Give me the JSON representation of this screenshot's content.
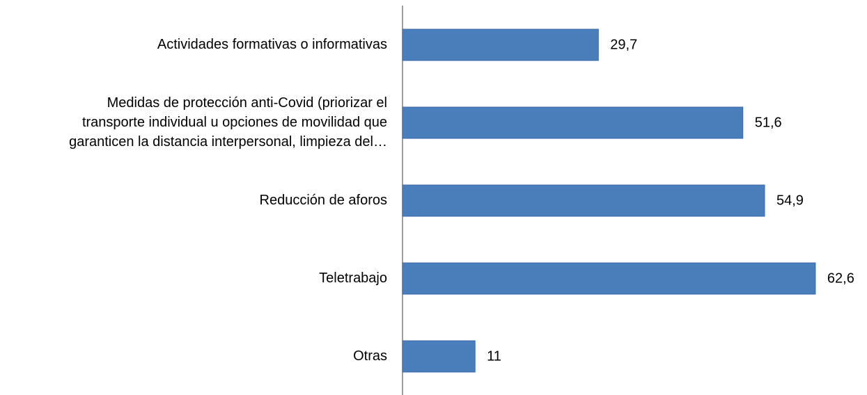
{
  "chart_data": {
    "type": "barh",
    "categories": [
      "Actividades formativas o informativas",
      "Medidas de protección anti-Covid (priorizar el\ntransporte individual u opciones de movilidad que\ngaranticen la distancia interpersonal, limpieza del…",
      "Reducción de aforos",
      "Teletrabajo",
      "Otras"
    ],
    "values": [
      29.7,
      51.6,
      54.9,
      62.6,
      11
    ],
    "value_labels": [
      "29,7",
      "51,6",
      "54,9",
      "62,6",
      "11"
    ],
    "color": "#4a7ebb",
    "xlim": [
      0,
      70
    ]
  }
}
